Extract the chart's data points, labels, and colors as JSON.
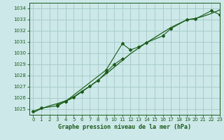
{
  "title": "Graphe pression niveau de la mer (hPa)",
  "bg_color": "#cce8e8",
  "grid_color": "#aacccc",
  "line_color": "#1a5c1a",
  "xlim": [
    -0.5,
    23
  ],
  "ylim": [
    1024.5,
    1034.5
  ],
  "yticks": [
    1025,
    1026,
    1027,
    1028,
    1029,
    1030,
    1031,
    1032,
    1033,
    1034
  ],
  "xticks": [
    0,
    1,
    2,
    3,
    4,
    5,
    6,
    7,
    8,
    9,
    10,
    11,
    12,
    13,
    14,
    15,
    16,
    17,
    18,
    19,
    20,
    21,
    22,
    23
  ],
  "series1_x": [
    0,
    1,
    3,
    4,
    9,
    11,
    12,
    13,
    14,
    16,
    17,
    19,
    20,
    22,
    23
  ],
  "series1_y": [
    1024.8,
    1025.1,
    1025.3,
    1025.7,
    1028.5,
    1030.85,
    1030.3,
    1030.55,
    1030.95,
    1031.55,
    1032.2,
    1033.0,
    1033.05,
    1033.8,
    1033.45
  ],
  "series2_x": [
    3,
    4,
    5,
    6,
    7,
    8,
    9,
    10,
    11
  ],
  "series2_y": [
    1025.4,
    1025.7,
    1026.05,
    1026.55,
    1027.05,
    1027.55,
    1028.3,
    1029.0,
    1029.5
  ],
  "series3_x": [
    0,
    1,
    2,
    3,
    4,
    5,
    6,
    7,
    8,
    9,
    10,
    11,
    12,
    13,
    14,
    15,
    16,
    17,
    18,
    19,
    20,
    21,
    22,
    23
  ],
  "series3_y": [
    1024.7,
    1025.05,
    1025.3,
    1025.5,
    1025.75,
    1026.1,
    1026.6,
    1027.05,
    1027.6,
    1028.15,
    1028.75,
    1029.35,
    1029.95,
    1030.45,
    1030.95,
    1031.4,
    1031.85,
    1032.3,
    1032.65,
    1033.0,
    1033.1,
    1033.3,
    1033.55,
    1033.85
  ]
}
